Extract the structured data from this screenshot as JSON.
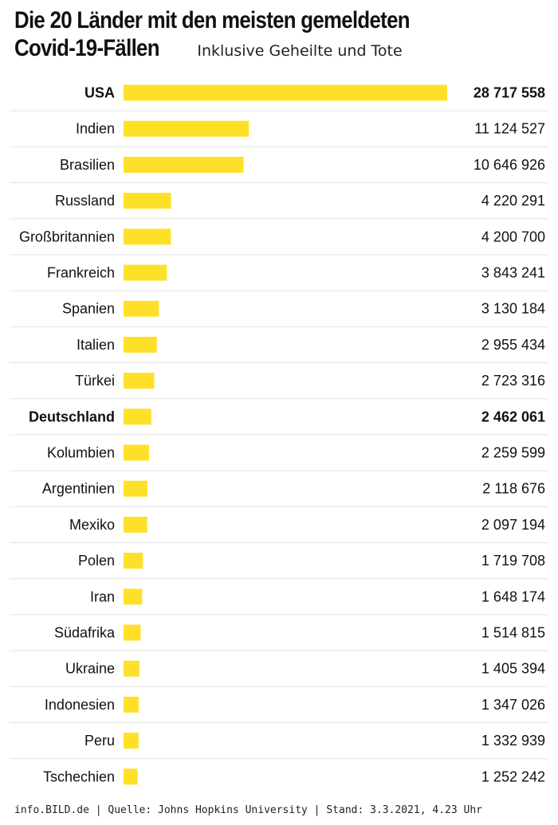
{
  "title_line1": "Die 20 Länder mit den meisten gemeldeten",
  "title_line2": "Covid-19-Fällen",
  "subtitle": "Inklusive Geheilte und Tote",
  "source": "info.BILD.de | Quelle: Johns Hopkins University | Stand: 3.3.2021, 4.23 Uhr",
  "colors": {
    "bar": "#FFE029",
    "separator": "#E3E3E3",
    "text": "#111111"
  },
  "chart_data": {
    "type": "bar",
    "orientation": "horizontal",
    "categories": [
      "USA",
      "Indien",
      "Brasilien",
      "Russland",
      "Großbritannien",
      "Frankreich",
      "Spanien",
      "Italien",
      "Türkei",
      "Deutschland",
      "Kolumbien",
      "Argentinien",
      "Mexiko",
      "Polen",
      "Iran",
      "Südafrika",
      "Ukraine",
      "Indonesien",
      "Peru",
      "Tschechien"
    ],
    "values": [
      28717558,
      11124527,
      10646926,
      4220291,
      4200700,
      3843241,
      3130184,
      2955434,
      2723316,
      2462061,
      2259599,
      2118676,
      2097194,
      1719708,
      1648174,
      1514815,
      1405394,
      1347026,
      1332939,
      1252242
    ],
    "value_labels": [
      "28 717 558",
      "11 124 527",
      "10 646 926",
      "4 220 291",
      "4 200 700",
      "3 843 241",
      "3 130 184",
      "2 955 434",
      "2 723 316",
      "2 462 061",
      "2 259 599",
      "2 118 676",
      "2 097 194",
      "1 719 708",
      "1 648 174",
      "1 514 815",
      "1 405 394",
      "1 347 026",
      "1 332 939",
      "1 252 242"
    ],
    "highlighted": [
      "USA",
      "Deutschland"
    ],
    "xlim": [
      0,
      28717558
    ],
    "grid": false,
    "legend": "none"
  }
}
